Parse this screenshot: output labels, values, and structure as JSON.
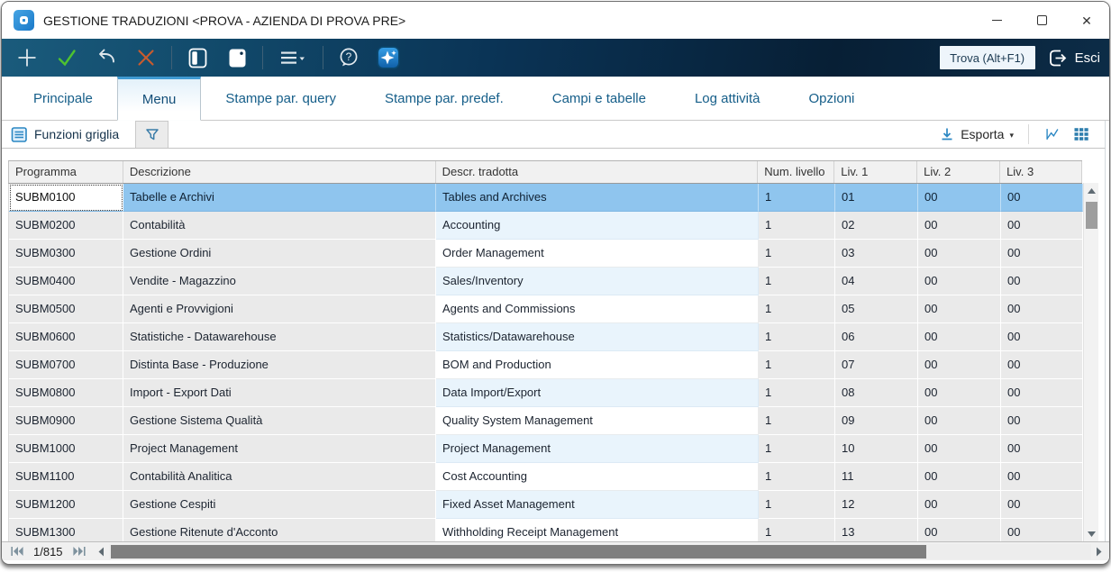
{
  "window": {
    "title": "GESTIONE TRADUZIONI <PROVA - AZIENDA DI PROVA PRE>",
    "controls": [
      "minimize",
      "maximize",
      "close"
    ]
  },
  "toolbar": {
    "buttons": [
      "add",
      "confirm",
      "undo",
      "delete",
      "panel-left",
      "panel-right",
      "menu",
      "help",
      "assistant"
    ],
    "find_label": "Trova (Alt+F1)",
    "exit_label": "Esci"
  },
  "tabs": [
    {
      "label": "Principale",
      "active": false
    },
    {
      "label": "Menu",
      "active": true
    },
    {
      "label": "Stampe par. query",
      "active": false
    },
    {
      "label": "Stampe par. predef.",
      "active": false
    },
    {
      "label": "Campi e tabelle",
      "active": false
    },
    {
      "label": "Log attività",
      "active": false
    },
    {
      "label": "Opzioni",
      "active": false
    }
  ],
  "grid_toolbar": {
    "functions_label": "Funzioni griglia",
    "export_label": "Esporta",
    "icons": [
      "filter-icon",
      "download-icon",
      "chart-icon",
      "cards-view-icon"
    ]
  },
  "table": {
    "columns": [
      "Programma",
      "Descrizione",
      "Descr. tradotta",
      "Num. livello",
      "Liv. 1",
      "Liv. 2",
      "Liv. 3"
    ],
    "selected_index": 0,
    "rows": [
      {
        "programma": "SUBM0100",
        "descrizione": "Tabelle e Archivi",
        "tradotta": "Tables and Archives",
        "num": "1",
        "l1": "01",
        "l2": "00",
        "l3": "00"
      },
      {
        "programma": "SUBM0200",
        "descrizione": "Contabilità",
        "tradotta": "Accounting",
        "num": "1",
        "l1": "02",
        "l2": "00",
        "l3": "00"
      },
      {
        "programma": "SUBM0300",
        "descrizione": "Gestione Ordini",
        "tradotta": "Order Management",
        "num": "1",
        "l1": "03",
        "l2": "00",
        "l3": "00"
      },
      {
        "programma": "SUBM0400",
        "descrizione": "Vendite - Magazzino",
        "tradotta": "Sales/Inventory",
        "num": "1",
        "l1": "04",
        "l2": "00",
        "l3": "00"
      },
      {
        "programma": "SUBM0500",
        "descrizione": "Agenti e Provvigioni",
        "tradotta": "Agents and Commissions",
        "num": "1",
        "l1": "05",
        "l2": "00",
        "l3": "00"
      },
      {
        "programma": "SUBM0600",
        "descrizione": "Statistiche - Datawarehouse",
        "tradotta": "Statistics/Datawarehouse",
        "num": "1",
        "l1": "06",
        "l2": "00",
        "l3": "00"
      },
      {
        "programma": "SUBM0700",
        "descrizione": "Distinta Base - Produzione",
        "tradotta": "BOM and Production",
        "num": "1",
        "l1": "07",
        "l2": "00",
        "l3": "00"
      },
      {
        "programma": "SUBM0800",
        "descrizione": "Import - Export Dati",
        "tradotta": "Data Import/Export",
        "num": "1",
        "l1": "08",
        "l2": "00",
        "l3": "00"
      },
      {
        "programma": "SUBM0900",
        "descrizione": "Gestione Sistema Qualità",
        "tradotta": "Quality System Management",
        "num": "1",
        "l1": "09",
        "l2": "00",
        "l3": "00"
      },
      {
        "programma": "SUBM1000",
        "descrizione": "Project Management",
        "tradotta": "Project Management",
        "num": "1",
        "l1": "10",
        "l2": "00",
        "l3": "00"
      },
      {
        "programma": "SUBM1100",
        "descrizione": "Contabilità Analitica",
        "tradotta": "Cost Accounting",
        "num": "1",
        "l1": "11",
        "l2": "00",
        "l3": "00"
      },
      {
        "programma": "SUBM1200",
        "descrizione": "Gestione Cespiti",
        "tradotta": "Fixed Asset Management",
        "num": "1",
        "l1": "12",
        "l2": "00",
        "l3": "00"
      },
      {
        "programma": "SUBM1300",
        "descrizione": "Gestione Ritenute d'Acconto",
        "tradotta": "Withholding Receipt Management",
        "num": "1",
        "l1": "13",
        "l2": "00",
        "l3": "00"
      }
    ]
  },
  "statusbar": {
    "record_counter": "1/815"
  },
  "colors": {
    "accent": "#2b87c3",
    "selected_row": "#8fc5ee",
    "alt_cell": "#e9f4fc",
    "gray_cell": "#eaeaea",
    "toolbar_dark_start": "#1a5b7c",
    "toolbar_dark_end": "#071f35"
  }
}
